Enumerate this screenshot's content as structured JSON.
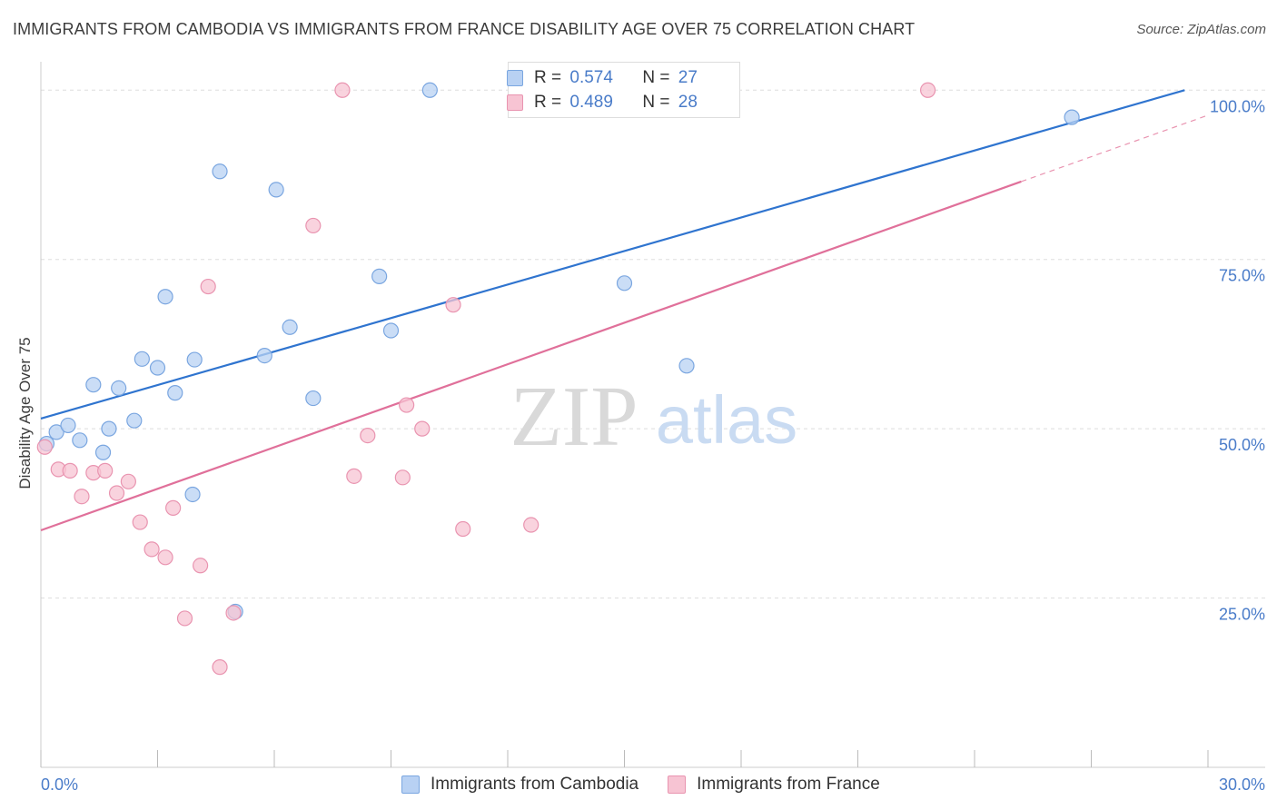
{
  "header": {
    "title": "IMMIGRANTS FROM CAMBODIA VS IMMIGRANTS FROM FRANCE DISABILITY AGE OVER 75 CORRELATION CHART",
    "source": "Source: ZipAtlas.com"
  },
  "watermark": {
    "zip": "ZIP",
    "atlas": "atlas"
  },
  "legend_stats": {
    "cambodia": {
      "r_label": "R =",
      "r_value": "0.574",
      "n_label": "N =",
      "n_value": "27"
    },
    "france": {
      "r_label": "R =",
      "r_value": "0.489",
      "n_label": "N =",
      "n_value": "28"
    }
  },
  "colors": {
    "cambodia_fill": "#b8d1f3",
    "cambodia_stroke": "#7aa6e0",
    "cambodia_line": "#2f74cf",
    "france_fill": "#f7c4d3",
    "france_stroke": "#e994b0",
    "france_line": "#e0709a",
    "tick_text": "#4a7cc9",
    "grid": "#dddddd"
  },
  "chart_data": {
    "type": "scatter",
    "title": "IMMIGRANTS FROM CAMBODIA VS IMMIGRANTS FROM FRANCE DISABILITY AGE OVER 75 CORRELATION CHART",
    "xlabel": "",
    "ylabel": "Disability Age Over 75",
    "xlim": [
      0,
      30
    ],
    "ylim": [
      0,
      105
    ],
    "x_tick_labels": [
      {
        "value": 0,
        "label": "0.0%"
      },
      {
        "value": 30,
        "label": "30.0%"
      }
    ],
    "y_tick_labels": [
      {
        "value": 25,
        "label": "25.0%"
      },
      {
        "value": 50,
        "label": "50.0%"
      },
      {
        "value": 75,
        "label": "75.0%"
      },
      {
        "value": 100,
        "label": "100.0%"
      }
    ],
    "x_minor_ticks": [
      0,
      3,
      6,
      9,
      12,
      15,
      18,
      21,
      24,
      27,
      30
    ],
    "legend_position": "bottom",
    "series": [
      {
        "name": "Immigrants from Cambodia",
        "r": 0.574,
        "n": 27,
        "points": [
          [
            0.15,
            47.8
          ],
          [
            0.4,
            49.5
          ],
          [
            0.7,
            50.5
          ],
          [
            1.0,
            48.3
          ],
          [
            1.35,
            56.5
          ],
          [
            1.6,
            46.5
          ],
          [
            1.75,
            50.0
          ],
          [
            2.0,
            56.0
          ],
          [
            2.4,
            51.2
          ],
          [
            2.6,
            60.3
          ],
          [
            3.0,
            59.0
          ],
          [
            3.2,
            69.5
          ],
          [
            3.45,
            55.3
          ],
          [
            3.9,
            40.3
          ],
          [
            3.95,
            60.2
          ],
          [
            4.6,
            88.0
          ],
          [
            5.0,
            23.0
          ],
          [
            5.75,
            60.8
          ],
          [
            6.05,
            85.3
          ],
          [
            6.4,
            65.0
          ],
          [
            7.0,
            54.5
          ],
          [
            8.7,
            72.5
          ],
          [
            9.0,
            64.5
          ],
          [
            10.0,
            100.0
          ],
          [
            15.0,
            71.5
          ],
          [
            16.6,
            59.3
          ],
          [
            26.5,
            96.0
          ]
        ],
        "trend": {
          "x": [
            0,
            29.4
          ],
          "y": [
            51.5,
            100.0
          ]
        }
      },
      {
        "name": "Immigrants from France",
        "r": 0.489,
        "n": 28,
        "points": [
          [
            0.1,
            47.3
          ],
          [
            0.45,
            44.0
          ],
          [
            0.75,
            43.8
          ],
          [
            1.05,
            40.0
          ],
          [
            1.35,
            43.5
          ],
          [
            1.65,
            43.8
          ],
          [
            1.95,
            40.5
          ],
          [
            2.25,
            42.2
          ],
          [
            2.55,
            36.2
          ],
          [
            2.85,
            32.2
          ],
          [
            3.2,
            31.0
          ],
          [
            3.4,
            38.3
          ],
          [
            3.7,
            22.0
          ],
          [
            4.1,
            29.8
          ],
          [
            4.3,
            71.0
          ],
          [
            4.6,
            14.8
          ],
          [
            4.95,
            22.8
          ],
          [
            7.0,
            80.0
          ],
          [
            7.75,
            100.0
          ],
          [
            8.05,
            43.0
          ],
          [
            8.4,
            49.0
          ],
          [
            9.3,
            42.8
          ],
          [
            9.4,
            53.5
          ],
          [
            9.8,
            50.0
          ],
          [
            10.6,
            68.3
          ],
          [
            10.85,
            35.2
          ],
          [
            12.6,
            35.8
          ],
          [
            22.8,
            100.0
          ]
        ],
        "trend": {
          "x": [
            0,
            25.2
          ],
          "y": [
            35.0,
            86.5
          ]
        },
        "trend_extension": {
          "x": [
            25.2,
            30.0
          ],
          "y": [
            86.5,
            96.3
          ]
        }
      }
    ]
  }
}
